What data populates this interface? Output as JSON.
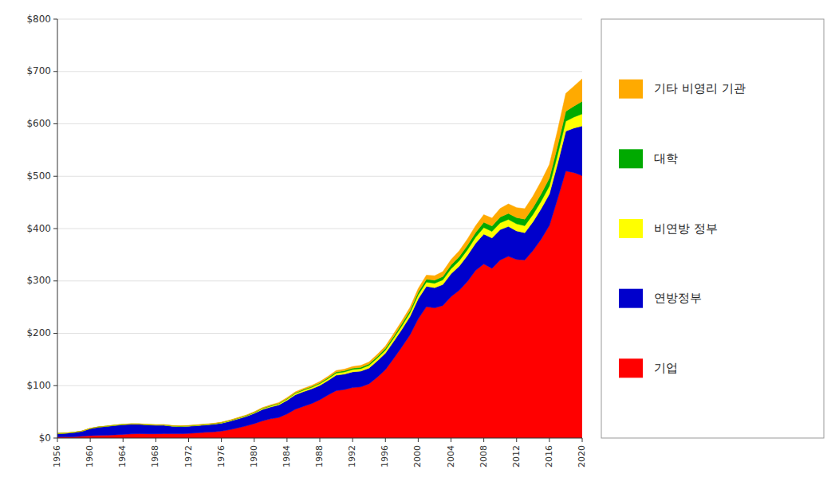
{
  "chart_data": {
    "type": "area",
    "stacked": true,
    "x": [
      1956,
      1957,
      1958,
      1959,
      1960,
      1961,
      1962,
      1963,
      1964,
      1965,
      1966,
      1967,
      1968,
      1969,
      1970,
      1971,
      1972,
      1973,
      1974,
      1975,
      1976,
      1977,
      1978,
      1979,
      1980,
      1981,
      1982,
      1983,
      1984,
      1985,
      1986,
      1987,
      1988,
      1989,
      1990,
      1991,
      1992,
      1993,
      1994,
      1995,
      1996,
      1997,
      1998,
      1999,
      2000,
      2001,
      2002,
      2003,
      2004,
      2005,
      2006,
      2007,
      2008,
      2009,
      2010,
      2011,
      2012,
      2013,
      2014,
      2015,
      2016,
      2017,
      2018,
      2019,
      2020
    ],
    "series": [
      {
        "name": "기업",
        "color": "#ff0000",
        "values": [
          2.0,
          2.2,
          2.4,
          3.4,
          4.5,
          4.8,
          5.2,
          6.0,
          7.0,
          7.9,
          8.4,
          8.1,
          8.1,
          8.5,
          8.2,
          8.2,
          8.8,
          9.9,
          10.9,
          11.6,
          13.3,
          15.9,
          19.4,
          23.1,
          27.5,
          32.7,
          36.7,
          39.3,
          46.0,
          54.9,
          60.5,
          65.8,
          72.9,
          82.2,
          90.5,
          92.5,
          96.4,
          97.7,
          103.6,
          116.1,
          130.5,
          151.8,
          173.9,
          197.1,
          227.7,
          250.8,
          248.5,
          253.0,
          270.0,
          282.0,
          299.0,
          320.0,
          332.5,
          324.0,
          340.0,
          347.0,
          341.0,
          340.0,
          358.0,
          380.0,
          406.0,
          457.0,
          510.0,
          507.0,
          501.0
        ]
      },
      {
        "name": "연방정부",
        "color": "#0000cc",
        "values": [
          6.5,
          7.0,
          8.2,
          9.6,
          13.5,
          16.0,
          17.1,
          18.0,
          18.5,
          18.4,
          17.8,
          17.1,
          16.3,
          15.9,
          14.4,
          13.8,
          13.8,
          13.7,
          14.0,
          14.5,
          15.0,
          16.0,
          17.0,
          18.0,
          19.5,
          21.8,
          22.5,
          24.0,
          26.0,
          27.5,
          28.0,
          28.0,
          27.5,
          27.5,
          29.5,
          29.5,
          30.0,
          30.0,
          30.0,
          31.0,
          31.5,
          32.5,
          33.5,
          35.0,
          38.0,
          39.0,
          38.5,
          40.0,
          43.5,
          46.0,
          49.5,
          52.0,
          57.0,
          58.0,
          58.0,
          57.0,
          54.5,
          52.0,
          55.0,
          58.0,
          60.0,
          67.0,
          76.0,
          85.0,
          95.0
        ]
      },
      {
        "name": "비연방 정부",
        "color": "#ffff00",
        "values": [
          0.2,
          0.2,
          0.2,
          0.2,
          0.3,
          0.3,
          0.3,
          0.4,
          0.4,
          0.5,
          0.5,
          0.5,
          0.5,
          0.6,
          0.6,
          0.6,
          0.7,
          0.7,
          0.8,
          0.8,
          0.9,
          1.0,
          1.1,
          1.2,
          1.4,
          1.6,
          1.8,
          2.0,
          2.3,
          2.6,
          2.8,
          3.0,
          3.3,
          3.6,
          4.0,
          4.2,
          4.5,
          4.8,
          5.1,
          5.5,
          5.8,
          6.2,
          6.7,
          7.0,
          7.8,
          8.0,
          8.5,
          9.0,
          9.8,
          10.5,
          11.0,
          11.5,
          12.5,
          12.5,
          13.0,
          13.5,
          13.5,
          13.5,
          14.0,
          14.5,
          15.5,
          17.0,
          19.0,
          21.0,
          23.0
        ]
      },
      {
        "name": "대학",
        "color": "#00aa00",
        "values": [
          0.1,
          0.1,
          0.1,
          0.1,
          0.1,
          0.1,
          0.1,
          0.2,
          0.2,
          0.2,
          0.2,
          0.2,
          0.3,
          0.3,
          0.3,
          0.3,
          0.3,
          0.4,
          0.4,
          0.4,
          0.5,
          0.5,
          0.6,
          0.6,
          0.7,
          0.8,
          0.9,
          1.0,
          1.1,
          1.3,
          1.4,
          1.5,
          1.7,
          1.9,
          2.1,
          2.2,
          2.4,
          2.6,
          2.8,
          3.0,
          3.3,
          3.6,
          4.0,
          4.4,
          5.0,
          5.5,
          6.0,
          6.5,
          7.2,
          7.8,
          8.5,
          9.0,
          10.0,
          10.5,
          11.0,
          11.5,
          12.0,
          12.5,
          13.0,
          14.0,
          15.0,
          17.0,
          19.0,
          21.0,
          24.0
        ]
      },
      {
        "name": "기타 비영리 기관",
        "color": "#ffaa00",
        "values": [
          0.1,
          0.1,
          0.1,
          0.2,
          0.2,
          0.2,
          0.2,
          0.3,
          0.3,
          0.3,
          0.3,
          0.4,
          0.4,
          0.4,
          0.5,
          0.5,
          0.5,
          0.6,
          0.6,
          0.7,
          0.7,
          0.8,
          0.9,
          1.0,
          1.1,
          1.2,
          1.4,
          1.5,
          1.7,
          1.9,
          2.0,
          2.2,
          2.4,
          2.6,
          2.9,
          3.1,
          3.3,
          3.5,
          3.8,
          4.1,
          4.5,
          5.0,
          5.6,
          6.1,
          7.0,
          7.8,
          8.5,
          9.2,
          10.2,
          11.2,
          12.0,
          13.0,
          14.5,
          15.0,
          16.5,
          18.0,
          19.0,
          20.0,
          22.0,
          24.0,
          26.0,
          30.0,
          34.0,
          38.0,
          43.0
        ]
      }
    ],
    "xlim": [
      1956,
      2020
    ],
    "xticks": [
      1956,
      1960,
      1964,
      1968,
      1972,
      1976,
      1980,
      1984,
      1988,
      1992,
      1996,
      2000,
      2004,
      2008,
      2012,
      2016,
      2020
    ],
    "ylim": [
      0,
      800
    ],
    "yticks": [
      {
        "value": 0,
        "label": "$0"
      },
      {
        "value": 100,
        "label": "$100"
      },
      {
        "value": 200,
        "label": "$200"
      },
      {
        "value": 300,
        "label": "$300"
      },
      {
        "value": 400,
        "label": "$400"
      },
      {
        "value": 500,
        "label": "$500"
      },
      {
        "value": 600,
        "label": "$600"
      },
      {
        "value": 700,
        "label": "$700"
      },
      {
        "value": 800,
        "label": "$800"
      }
    ],
    "grid": true,
    "legend": "right"
  }
}
